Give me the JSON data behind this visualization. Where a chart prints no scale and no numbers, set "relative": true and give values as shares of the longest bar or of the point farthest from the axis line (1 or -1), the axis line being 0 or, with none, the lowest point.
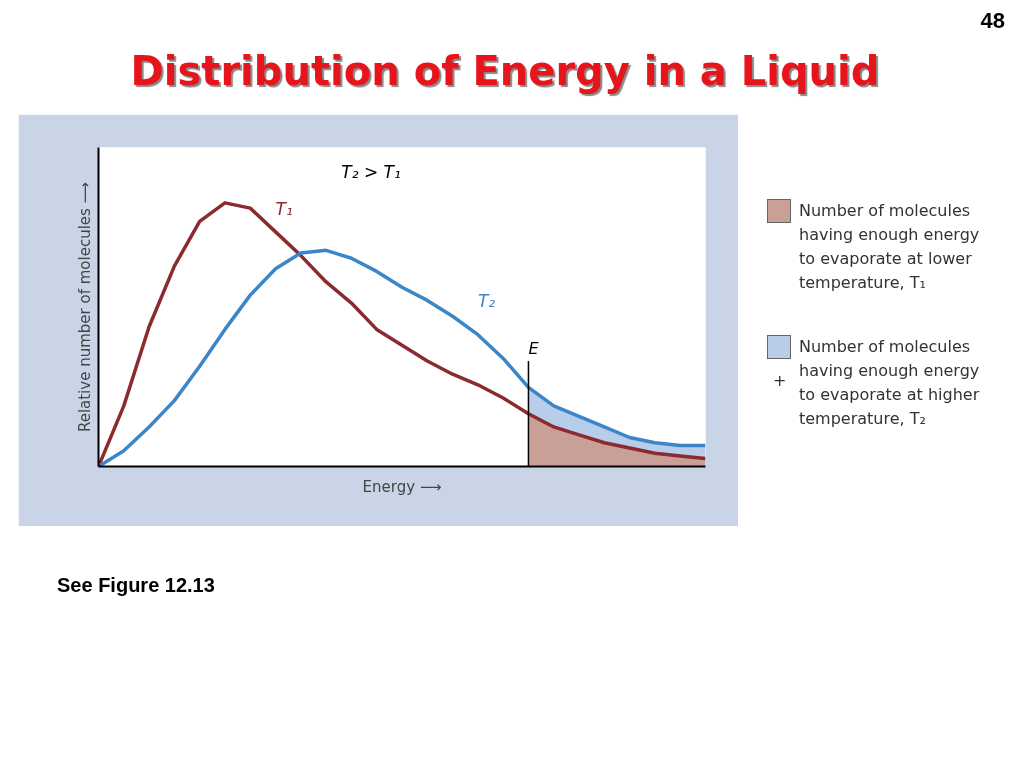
{
  "chart_data": {
    "type": "line",
    "relative": true,
    "title": "Distribution of Energy in a Liquid",
    "xlabel": "Energy ⟶",
    "ylabel": "Relative number of molecules ⟶",
    "grid": false,
    "marker": "none",
    "line_style": "solid",
    "categories": [
      null,
      null,
      null,
      null,
      null,
      null,
      null,
      null,
      null,
      null,
      null,
      null,
      null,
      null,
      null,
      null,
      null,
      null,
      null,
      null,
      null,
      null,
      null,
      null,
      null
    ],
    "series": [
      {
        "name": "T₁",
        "color": "#8b2a2f",
        "values": [
          0,
          0.23,
          0.53,
          0.76,
          0.93,
          1.0,
          0.98,
          0.89,
          0.8,
          0.7,
          0.62,
          0.52,
          0.46,
          0.4,
          0.35,
          0.31,
          0.26,
          0.2,
          0.15,
          0.12,
          0.09,
          0.07,
          0.05,
          0.04,
          0.03
        ]
      },
      {
        "name": "T₂",
        "color": "#3a86c8",
        "values": [
          0,
          0.06,
          0.15,
          0.25,
          0.38,
          0.52,
          0.65,
          0.75,
          0.81,
          0.82,
          0.79,
          0.74,
          0.68,
          0.63,
          0.57,
          0.5,
          0.41,
          0.3,
          0.23,
          0.19,
          0.15,
          0.11,
          0.09,
          0.08,
          0.08
        ]
      },
      {
        "type": "area",
        "color": "#b7cdea",
        "values": [
          null,
          null,
          null,
          null,
          null,
          null,
          null,
          null,
          null,
          null,
          null,
          null,
          null,
          null,
          null,
          null,
          null,
          0.3,
          0.23,
          0.19,
          0.15,
          0.11,
          0.09,
          0.08,
          0.08
        ]
      },
      {
        "type": "area",
        "color": "#c9a097",
        "values": [
          null,
          null,
          null,
          null,
          null,
          null,
          null,
          null,
          null,
          null,
          null,
          null,
          null,
          null,
          null,
          null,
          null,
          0.2,
          0.15,
          0.12,
          0.09,
          0.07,
          0.05,
          0.04,
          0.03
        ]
      }
    ],
    "annotations": [
      "T₂ > T₁",
      "Number of molecules having enough energy to evaporate at lower temperature, T₁",
      "+",
      "Number of molecules having enough energy to evaporate at higher temperature, T₂",
      "See Figure 12.13",
      "48",
      "E"
    ]
  }
}
